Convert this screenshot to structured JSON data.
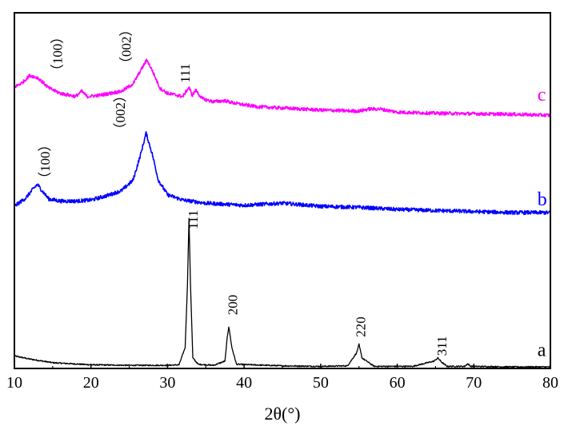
{
  "chart_data": {
    "type": "line",
    "title": "",
    "xlabel": "2θ(°)",
    "ylabel": "",
    "xlim": [
      10,
      80
    ],
    "xticks": [
      10,
      20,
      30,
      40,
      50,
      60,
      70,
      80
    ],
    "grid": false,
    "y_ticks_shown": false,
    "series": [
      {
        "name": "a",
        "color": "#000000",
        "x": [
          10,
          12,
          15,
          20,
          25,
          30,
          31.5,
          32.3,
          32.6,
          32.8,
          33.0,
          33.3,
          34,
          36,
          37.5,
          37.8,
          38.0,
          38.4,
          39,
          45,
          50,
          53.5,
          54.7,
          55.0,
          55.4,
          57,
          62,
          64.8,
          65.3,
          65.8,
          66.5,
          68.8,
          69.2,
          69.6,
          75,
          80
        ],
        "y": [
          1.2,
          0.9,
          0.55,
          0.35,
          0.3,
          0.3,
          0.35,
          2,
          8,
          14.3,
          8,
          1,
          0.4,
          0.3,
          0.7,
          3,
          4.0,
          2,
          0.4,
          0.25,
          0.2,
          0.25,
          1.5,
          2.3,
          1.0,
          0.2,
          0.2,
          0.7,
          1.0,
          0.6,
          0.2,
          0.2,
          0.45,
          0.2,
          0.15,
          0.15
        ]
      },
      {
        "name": "b",
        "color": "#0000ff",
        "x": [
          10,
          11.5,
          12.5,
          13,
          13.6,
          14.5,
          16,
          18,
          20,
          22,
          24,
          25.5,
          26.5,
          27.2,
          28,
          28.8,
          30,
          32,
          35,
          40,
          45,
          50,
          55,
          60,
          65,
          70,
          75,
          80
        ],
        "y": [
          15.5,
          16.3,
          17.2,
          17.6,
          17.0,
          16.2,
          16.0,
          16.0,
          16.1,
          16.5,
          17.0,
          18.0,
          20.5,
          22.5,
          20.5,
          18.0,
          16.6,
          16.1,
          15.8,
          15.6,
          15.8,
          15.5,
          15.4,
          15.2,
          15.1,
          15.0,
          14.9,
          14.9
        ]
      },
      {
        "name": "c",
        "color": "#ff00ff",
        "x": [
          10,
          11,
          12,
          13,
          13.5,
          14.5,
          16,
          18,
          18.8,
          19.5,
          21,
          24,
          25.5,
          26.5,
          27.3,
          28,
          29,
          30,
          32,
          32.8,
          33.2,
          33.7,
          34.5,
          36,
          37.5,
          38.5,
          40,
          42,
          45,
          50,
          55,
          56.3,
          57.8,
          60,
          65,
          70,
          75,
          80
        ],
        "y": [
          26.9,
          27.3,
          28.0,
          27.8,
          27.5,
          26.8,
          26.3,
          26.0,
          26.5,
          26.0,
          26.1,
          26.5,
          27.2,
          28.5,
          29.5,
          28.5,
          26.8,
          26.3,
          26.0,
          26.9,
          26.1,
          26.6,
          25.8,
          25.5,
          25.6,
          25.4,
          25.2,
          25.0,
          24.9,
          24.7,
          24.6,
          24.8,
          24.8,
          24.5,
          24.4,
          24.35,
          24.3,
          24.2
        ]
      }
    ],
    "series_labels": [
      {
        "series": "a",
        "text": "a",
        "x": 78.3,
        "y": 1.2
      },
      {
        "series": "b",
        "text": "b",
        "x": 78.3,
        "y": 15.6
      },
      {
        "series": "c",
        "text": "c",
        "x": 78.3,
        "y": 25.6
      }
    ],
    "annotations": [
      {
        "text": "111",
        "x": 33.9,
        "y": 13.3,
        "rotated": true
      },
      {
        "text": "200",
        "x": 39.1,
        "y": 5.1,
        "rotated": true
      },
      {
        "text": "220",
        "x": 55.8,
        "y": 3.0,
        "rotated": true
      },
      {
        "text": "311",
        "x": 66.4,
        "y": 1.2,
        "rotated": true
      },
      {
        "text": "（100）",
        "x": 14.6,
        "y": 17.5,
        "rotated": true
      },
      {
        "text": "（002）",
        "x": 24.4,
        "y": 22.2,
        "rotated": true
      },
      {
        "text": "（100）",
        "x": 16.2,
        "y": 27.8,
        "rotated": true
      },
      {
        "text": "（002）",
        "x": 25.2,
        "y": 28.5,
        "rotated": true
      },
      {
        "text": "111",
        "x": 32.9,
        "y": 27.3,
        "rotated": true
      }
    ]
  }
}
